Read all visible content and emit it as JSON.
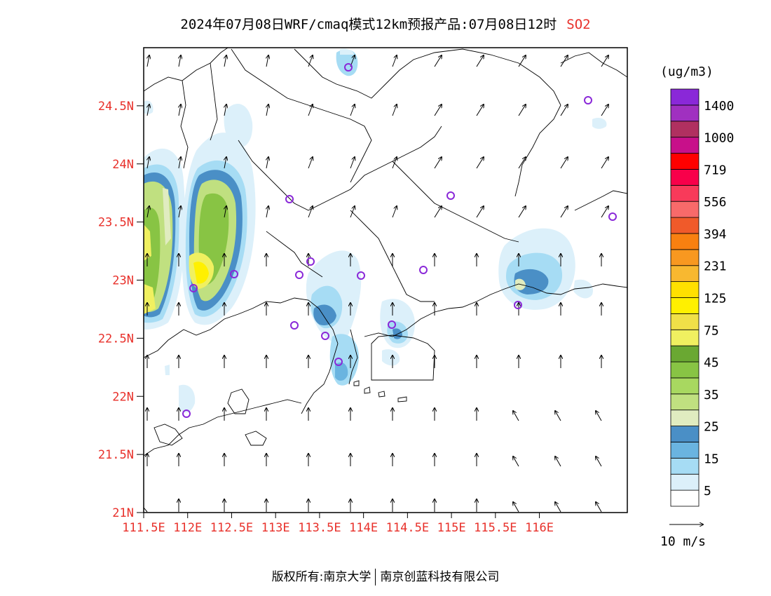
{
  "title": {
    "text": "2024年07月08日WRF/cmaq模式12km预报产品:07月08日12时",
    "pollutant": "SO2"
  },
  "map": {
    "lat_labels": [
      "24.5N",
      "24N",
      "23.5N",
      "23N",
      "22.5N",
      "22N",
      "21.5N",
      "21N"
    ],
    "lat_values": [
      24.5,
      24,
      23.5,
      23,
      22.5,
      22,
      21.5,
      21
    ],
    "lon_labels": [
      "111.5E",
      "112E",
      "112.5E",
      "113E",
      "113.5E",
      "114E",
      "114.5E",
      "115E",
      "115.5E",
      "116E"
    ],
    "lon_values": [
      111.5,
      112,
      112.5,
      113,
      113.5,
      114,
      114.5,
      115,
      115.5,
      116
    ],
    "lon_range": [
      111.5,
      117.0
    ],
    "lat_range": [
      21.0,
      25.0
    ],
    "label_color": "#e8302a"
  },
  "colorbar": {
    "unit": "(ug/m3)",
    "colors": [
      "#ffffff",
      "#dcf0fa",
      "#a6dcf4",
      "#6ab4e0",
      "#4a8fc6",
      "#e0ecc0",
      "#c0e080",
      "#a8d860",
      "#88c444",
      "#6aa832",
      "#f0f060",
      "#f0e048",
      "#fff000",
      "#ffe000",
      "#f8b830",
      "#f89820",
      "#f88010",
      "#f05a2a",
      "#f86a6a",
      "#f83a5a",
      "#f8004a",
      "#ff0000",
      "#c8108a",
      "#b03060",
      "#a030c0",
      "#8a28d8"
    ],
    "labels": [
      "5",
      "15",
      "25",
      "35",
      "45",
      "75",
      "125",
      "231",
      "394",
      "556",
      "719",
      "1000",
      "1400"
    ],
    "wind_reference": "10 m/s"
  },
  "sites_description_count": 19,
  "footer": {
    "left": "版权所有:南京大学",
    "right": "南京创蓝科技有限公司"
  }
}
